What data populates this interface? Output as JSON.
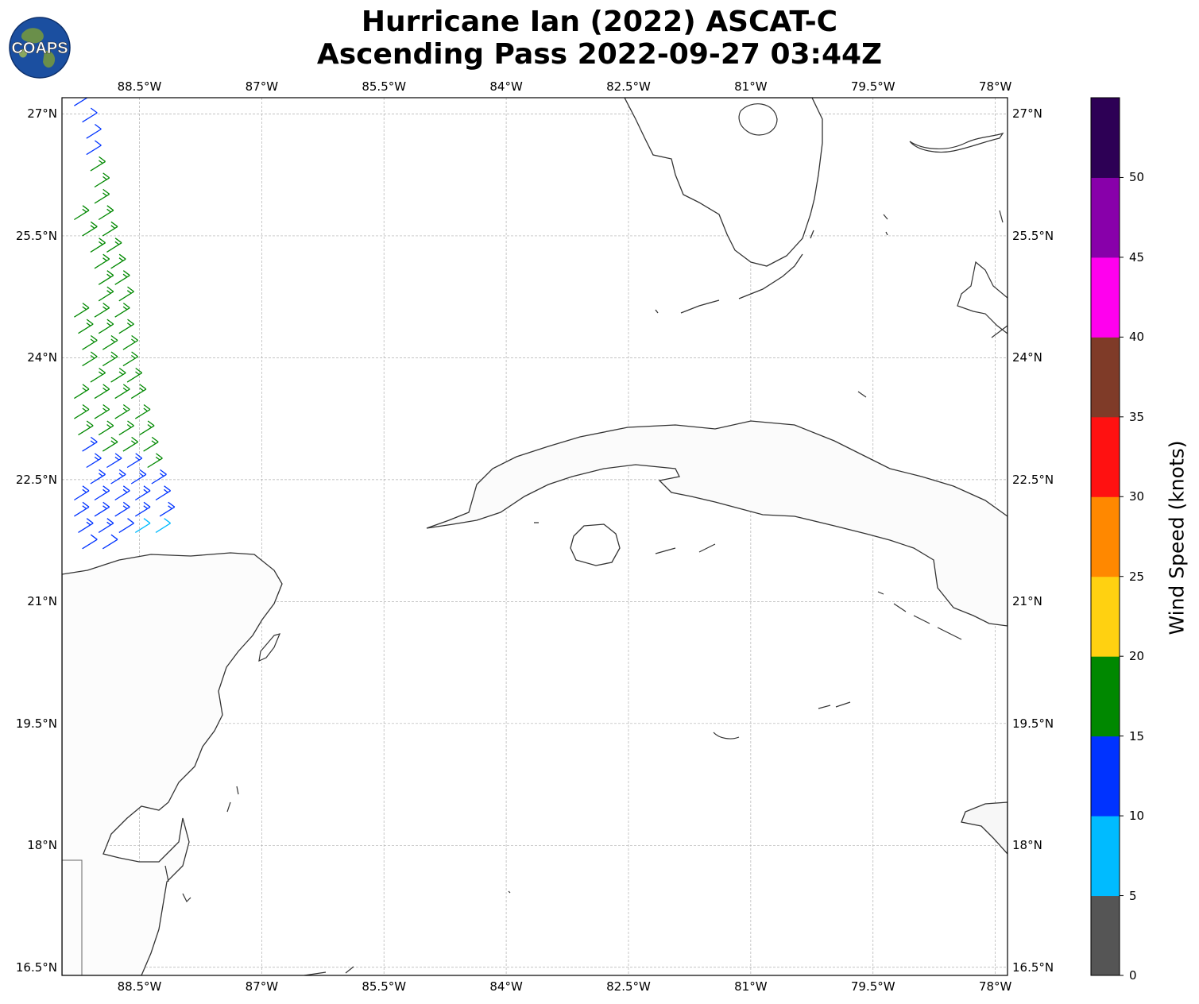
{
  "title": {
    "line1": "Hurricane Ian (2022) ASCAT-C",
    "line2": "Ascending Pass 2022-09-27 03:44Z"
  },
  "logo": {
    "text": "COAPS",
    "icon": "globe-logo-icon"
  },
  "map": {
    "lon_range": [
      -89.45,
      -77.85
    ],
    "lat_range": [
      16.4,
      27.2
    ],
    "lon_ticks": [
      {
        "value": -88.5,
        "label": "88.5°W"
      },
      {
        "value": -87,
        "label": "87°W"
      },
      {
        "value": -85.5,
        "label": "85.5°W"
      },
      {
        "value": -84,
        "label": "84°W"
      },
      {
        "value": -82.5,
        "label": "82.5°W"
      },
      {
        "value": -81,
        "label": "81°W"
      },
      {
        "value": -79.5,
        "label": "79.5°W"
      },
      {
        "value": -78,
        "label": "78°W"
      }
    ],
    "lat_ticks": [
      {
        "value": 27,
        "label": "27°N"
      },
      {
        "value": 25.5,
        "label": "25.5°N"
      },
      {
        "value": 24,
        "label": "24°N"
      },
      {
        "value": 22.5,
        "label": "22.5°N"
      },
      {
        "value": 21,
        "label": "21°N"
      },
      {
        "value": 19.5,
        "label": "19.5°N"
      },
      {
        "value": 18,
        "label": "18°N"
      },
      {
        "value": 16.5,
        "label": "16.5°N"
      }
    ],
    "gridlines": true,
    "coastline_color": "#333333"
  },
  "colorbar": {
    "label": "Wind Speed (knots)",
    "ticks": [
      "0",
      "5",
      "10",
      "15",
      "20",
      "25",
      "30",
      "35",
      "40",
      "45",
      "50"
    ],
    "bins": [
      {
        "min": 0,
        "max": 5,
        "color": "#555555"
      },
      {
        "min": 5,
        "max": 10,
        "color": "#00bbff"
      },
      {
        "min": 10,
        "max": 15,
        "color": "#0033ff"
      },
      {
        "min": 15,
        "max": 20,
        "color": "#008800"
      },
      {
        "min": 20,
        "max": 25,
        "color": "#ffd111"
      },
      {
        "min": 25,
        "max": 30,
        "color": "#ff8800"
      },
      {
        "min": 30,
        "max": 35,
        "color": "#ff1111"
      },
      {
        "min": 35,
        "max": 40,
        "color": "#7f3b28"
      },
      {
        "min": 40,
        "max": 45,
        "color": "#ff00ee"
      },
      {
        "min": 45,
        "max": 50,
        "color": "#8800aa"
      },
      {
        "min": 50,
        "max": 55,
        "color": "#2d0055"
      }
    ]
  },
  "wind_barbs": [
    {
      "lon": -89.3,
      "lat": 27.1,
      "speed": 12
    },
    {
      "lon": -89.2,
      "lat": 26.9,
      "speed": 12
    },
    {
      "lon": -89.15,
      "lat": 26.7,
      "speed": 12
    },
    {
      "lon": -89.15,
      "lat": 26.5,
      "speed": 12
    },
    {
      "lon": -89.1,
      "lat": 26.3,
      "speed": 16
    },
    {
      "lon": -89.05,
      "lat": 26.1,
      "speed": 16
    },
    {
      "lon": -89.05,
      "lat": 25.9,
      "speed": 16
    },
    {
      "lon": -89.3,
      "lat": 25.7,
      "speed": 16
    },
    {
      "lon": -89.0,
      "lat": 25.7,
      "speed": 17
    },
    {
      "lon": -89.2,
      "lat": 25.5,
      "speed": 17
    },
    {
      "lon": -88.95,
      "lat": 25.5,
      "speed": 17
    },
    {
      "lon": -89.1,
      "lat": 25.3,
      "speed": 17
    },
    {
      "lon": -88.9,
      "lat": 25.3,
      "speed": 17
    },
    {
      "lon": -89.05,
      "lat": 25.1,
      "speed": 17
    },
    {
      "lon": -88.85,
      "lat": 25.1,
      "speed": 17
    },
    {
      "lon": -89.0,
      "lat": 24.9,
      "speed": 17
    },
    {
      "lon": -88.8,
      "lat": 24.9,
      "speed": 17
    },
    {
      "lon": -89.0,
      "lat": 24.7,
      "speed": 17
    },
    {
      "lon": -88.75,
      "lat": 24.7,
      "speed": 17
    },
    {
      "lon": -89.3,
      "lat": 24.5,
      "speed": 17
    },
    {
      "lon": -89.05,
      "lat": 24.5,
      "speed": 17
    },
    {
      "lon": -88.8,
      "lat": 24.5,
      "speed": 17
    },
    {
      "lon": -89.25,
      "lat": 24.3,
      "speed": 17
    },
    {
      "lon": -89.0,
      "lat": 24.3,
      "speed": 17
    },
    {
      "lon": -88.75,
      "lat": 24.3,
      "speed": 17
    },
    {
      "lon": -89.2,
      "lat": 24.1,
      "speed": 17
    },
    {
      "lon": -88.95,
      "lat": 24.1,
      "speed": 17
    },
    {
      "lon": -88.7,
      "lat": 24.1,
      "speed": 17
    },
    {
      "lon": -89.2,
      "lat": 23.9,
      "speed": 17
    },
    {
      "lon": -88.95,
      "lat": 23.9,
      "speed": 17
    },
    {
      "lon": -88.7,
      "lat": 23.9,
      "speed": 17
    },
    {
      "lon": -89.1,
      "lat": 23.7,
      "speed": 17
    },
    {
      "lon": -88.85,
      "lat": 23.7,
      "speed": 17
    },
    {
      "lon": -88.65,
      "lat": 23.7,
      "speed": 17
    },
    {
      "lon": -89.3,
      "lat": 23.5,
      "speed": 17
    },
    {
      "lon": -89.05,
      "lat": 23.5,
      "speed": 17
    },
    {
      "lon": -88.8,
      "lat": 23.5,
      "speed": 17
    },
    {
      "lon": -88.6,
      "lat": 23.5,
      "speed": 17
    },
    {
      "lon": -89.3,
      "lat": 23.25,
      "speed": 16
    },
    {
      "lon": -89.05,
      "lat": 23.25,
      "speed": 16
    },
    {
      "lon": -88.8,
      "lat": 23.25,
      "speed": 16
    },
    {
      "lon": -88.55,
      "lat": 23.25,
      "speed": 16
    },
    {
      "lon": -89.25,
      "lat": 23.05,
      "speed": 16
    },
    {
      "lon": -89.0,
      "lat": 23.05,
      "speed": 16
    },
    {
      "lon": -88.75,
      "lat": 23.05,
      "speed": 16
    },
    {
      "lon": -88.5,
      "lat": 23.05,
      "speed": 16
    },
    {
      "lon": -89.2,
      "lat": 22.85,
      "speed": 13
    },
    {
      "lon": -88.95,
      "lat": 22.85,
      "speed": 16
    },
    {
      "lon": -88.7,
      "lat": 22.85,
      "speed": 16
    },
    {
      "lon": -88.45,
      "lat": 22.85,
      "speed": 16
    },
    {
      "lon": -89.15,
      "lat": 22.65,
      "speed": 13
    },
    {
      "lon": -88.9,
      "lat": 22.65,
      "speed": 13
    },
    {
      "lon": -88.65,
      "lat": 22.65,
      "speed": 13
    },
    {
      "lon": -88.4,
      "lat": 22.65,
      "speed": 16
    },
    {
      "lon": -89.1,
      "lat": 22.45,
      "speed": 13
    },
    {
      "lon": -88.85,
      "lat": 22.45,
      "speed": 13
    },
    {
      "lon": -88.6,
      "lat": 22.45,
      "speed": 13
    },
    {
      "lon": -88.35,
      "lat": 22.45,
      "speed": 13
    },
    {
      "lon": -89.3,
      "lat": 22.25,
      "speed": 13
    },
    {
      "lon": -89.05,
      "lat": 22.25,
      "speed": 13
    },
    {
      "lon": -88.8,
      "lat": 22.25,
      "speed": 13
    },
    {
      "lon": -88.55,
      "lat": 22.25,
      "speed": 13
    },
    {
      "lon": -88.3,
      "lat": 22.25,
      "speed": 13
    },
    {
      "lon": -89.3,
      "lat": 22.05,
      "speed": 13
    },
    {
      "lon": -89.05,
      "lat": 22.05,
      "speed": 13
    },
    {
      "lon": -88.8,
      "lat": 22.05,
      "speed": 13
    },
    {
      "lon": -88.55,
      "lat": 22.05,
      "speed": 13
    },
    {
      "lon": -88.25,
      "lat": 22.05,
      "speed": 13
    },
    {
      "lon": -89.25,
      "lat": 21.85,
      "speed": 13
    },
    {
      "lon": -89.0,
      "lat": 21.85,
      "speed": 13
    },
    {
      "lon": -88.75,
      "lat": 21.85,
      "speed": 12
    },
    {
      "lon": -88.55,
      "lat": 21.85,
      "speed": 8
    },
    {
      "lon": -88.3,
      "lat": 21.85,
      "speed": 8
    },
    {
      "lon": -89.2,
      "lat": 21.65,
      "speed": 12
    },
    {
      "lon": -88.95,
      "lat": 21.65,
      "speed": 12
    }
  ]
}
